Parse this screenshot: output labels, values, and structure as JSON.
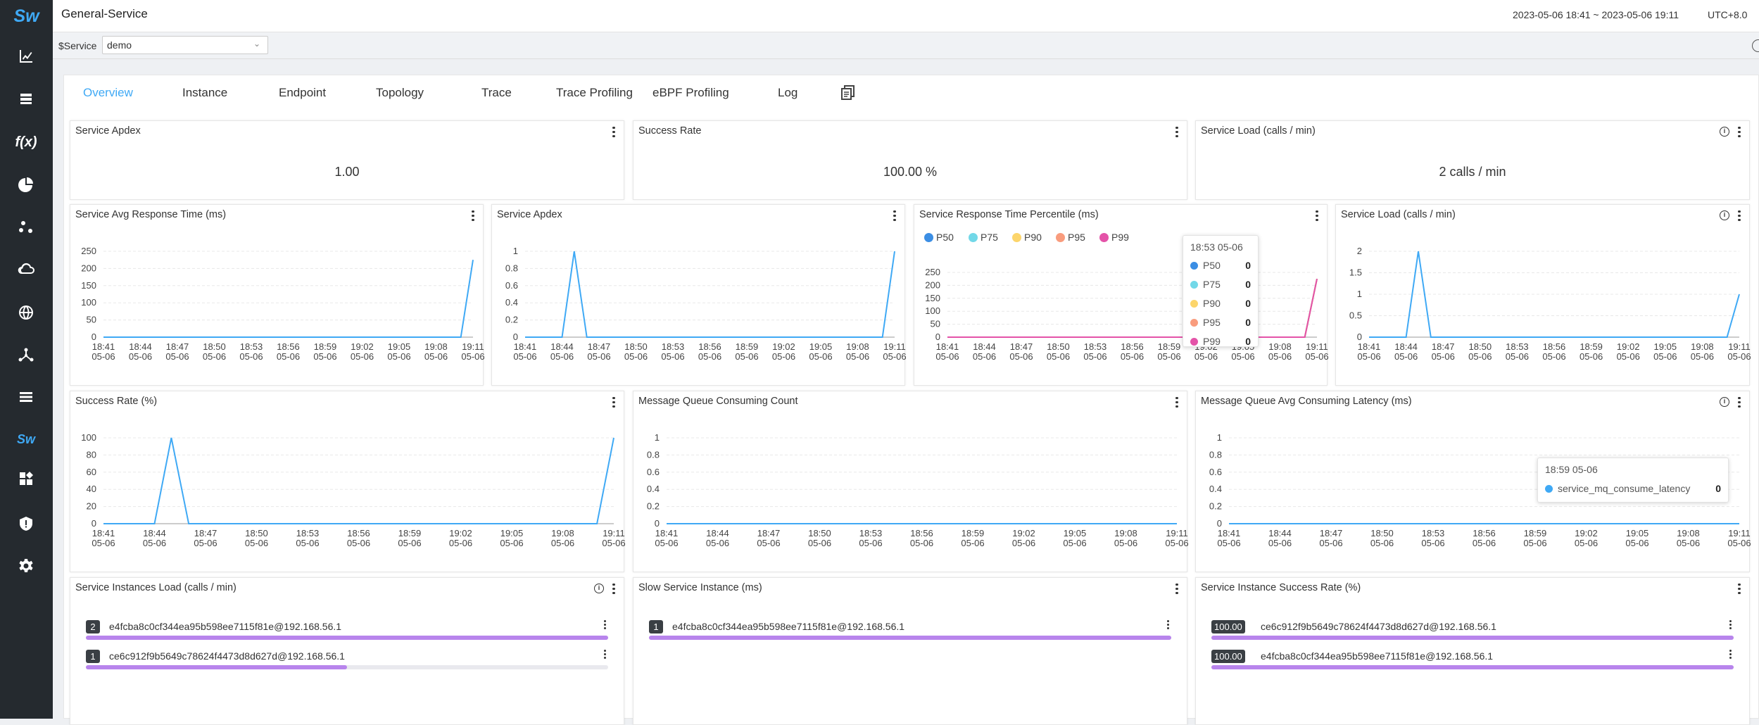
{
  "app": {
    "title": "General-Service",
    "logo": "Sw",
    "time_range": "2023-05-06 18:41 ~ 2023-05-06 19:11",
    "timezone": "UTC+8.0"
  },
  "sidebar": {
    "icons": [
      "dashboard-chart-icon",
      "layers-icon",
      "function-icon",
      "pie-chart-icon",
      "nodes-icon",
      "cloud-icon",
      "globe-icon",
      "mesh-icon",
      "list-icon",
      "skywalking-icon",
      "widgets-icon",
      "shield-icon",
      "gear-icon"
    ]
  },
  "variables": {
    "label": "$Service",
    "value": "demo"
  },
  "tabs": [
    {
      "label": "Overview"
    },
    {
      "label": "Instance"
    },
    {
      "label": "Endpoint"
    },
    {
      "label": "Topology"
    },
    {
      "label": "Trace"
    },
    {
      "label": "Trace Profiling"
    },
    {
      "label": "eBPF Profiling"
    },
    {
      "label": "Log"
    }
  ],
  "colors": {
    "accent": "#3fa9f5",
    "line": "#3fa9f5",
    "p50": "#3b8ee4",
    "p75": "#72d8e8",
    "p90": "#fcd56b",
    "p95": "#f99c7d",
    "p99": "#e453a8",
    "bar": "#b884ec"
  },
  "x_ticks": [
    "18:41",
    "18:44",
    "18:47",
    "18:50",
    "18:53",
    "18:56",
    "18:59",
    "19:02",
    "19:05",
    "19:08",
    "19:11"
  ],
  "x_ticks_sub": "05-06",
  "cards": {
    "apdex_value": {
      "title": "Service Apdex",
      "value": "1.00"
    },
    "success_rate_value": {
      "title": "Success Rate",
      "value": "100.00 %"
    },
    "load_value": {
      "title": "Service Load (calls / min)",
      "value": "2 calls / min"
    }
  },
  "chart_data": [
    {
      "id": "avg_resp",
      "type": "line",
      "title": "Service Avg Response Time (ms)",
      "yticks": [
        "250",
        "200",
        "150",
        "100",
        "50",
        "0"
      ],
      "ylim": [
        0,
        250
      ],
      "x": [
        0,
        1,
        2,
        3,
        4,
        5,
        6,
        7,
        8,
        9,
        9.67,
        10
      ],
      "values": [
        0,
        0,
        0,
        0,
        0,
        0,
        0,
        0,
        0,
        0,
        0,
        225
      ]
    },
    {
      "id": "apdex",
      "type": "line",
      "title": "Service Apdex",
      "yticks": [
        "1",
        "0.8",
        "0.6",
        "0.4",
        "0.2",
        "0"
      ],
      "ylim": [
        0,
        1
      ],
      "x": [
        0,
        1,
        1.33,
        1.67,
        2,
        3,
        4,
        5,
        6,
        7,
        8,
        9,
        9.67,
        10
      ],
      "values": [
        0,
        0,
        1,
        0,
        0,
        0,
        0,
        0,
        0,
        0,
        0,
        0,
        0,
        1
      ]
    },
    {
      "id": "percentile",
      "type": "line",
      "title": "Service Response Time Percentile (ms)",
      "yticks": [
        "250",
        "200",
        "150",
        "100",
        "50",
        "0"
      ],
      "ylim": [
        0,
        250
      ],
      "legend": [
        "P50",
        "P75",
        "P90",
        "P95",
        "P99"
      ],
      "x": [
        0,
        1,
        2,
        3,
        4,
        5,
        6,
        7,
        8,
        9,
        9.67,
        10
      ],
      "values": [
        0,
        0,
        0,
        0,
        0,
        0,
        0,
        0,
        0,
        0,
        0,
        225
      ],
      "tooltip": {
        "title": "18:53 05-06",
        "rows": [
          {
            "name": "P50",
            "value": "0"
          },
          {
            "name": "P75",
            "value": "0"
          },
          {
            "name": "P90",
            "value": "0"
          },
          {
            "name": "P95",
            "value": "0"
          },
          {
            "name": "P99",
            "value": "0"
          }
        ]
      }
    },
    {
      "id": "load",
      "type": "line",
      "title": "Service Load (calls / min)",
      "yticks": [
        "2",
        "1.5",
        "1",
        "0.5",
        "0"
      ],
      "ylim": [
        0,
        2
      ],
      "x": [
        0,
        1,
        1.33,
        1.67,
        2,
        3,
        4,
        5,
        6,
        7,
        8,
        9,
        9.67,
        10
      ],
      "values": [
        0,
        0,
        2,
        0,
        0,
        0,
        0,
        0,
        0,
        0,
        0,
        0,
        0,
        1
      ]
    },
    {
      "id": "success_rate",
      "type": "line",
      "title": "Success Rate (%)",
      "yticks": [
        "100",
        "80",
        "60",
        "40",
        "20",
        "0"
      ],
      "ylim": [
        0,
        100
      ],
      "x": [
        0,
        1,
        1.33,
        1.67,
        2,
        3,
        4,
        5,
        6,
        7,
        8,
        9,
        9.67,
        10
      ],
      "values": [
        0,
        0,
        100,
        0,
        0,
        0,
        0,
        0,
        0,
        0,
        0,
        0,
        0,
        100
      ]
    },
    {
      "id": "mq_count",
      "type": "line",
      "title": "Message Queue Consuming Count",
      "yticks": [
        "1",
        "0.8",
        "0.6",
        "0.4",
        "0.2",
        "0"
      ],
      "ylim": [
        0,
        1
      ],
      "x": [
        0,
        10
      ],
      "values": [
        0,
        0
      ]
    },
    {
      "id": "mq_latency",
      "type": "line",
      "title": "Message Queue Avg Consuming Latency (ms)",
      "yticks": [
        "1",
        "0.8",
        "0.6",
        "0.4",
        "0.2",
        "0"
      ],
      "ylim": [
        0,
        1
      ],
      "x": [
        0,
        10
      ],
      "values": [
        0,
        0
      ],
      "tooltip": {
        "title": "18:59 05-06",
        "rows": [
          {
            "name": "service_mq_consume_latency",
            "value": "0"
          }
        ]
      }
    }
  ],
  "lists": {
    "instances_load": {
      "title": "Service Instances Load (calls / min)",
      "max": 2,
      "items": [
        {
          "badge": "2",
          "value": 2,
          "name": "e4fcba8c0cf344ea95b598ee7115f81e@192.168.56.1"
        },
        {
          "badge": "1",
          "value": 1,
          "name": "ce6c912f9b5649c78624f4473d8d627d@192.168.56.1"
        }
      ]
    },
    "slow_instance": {
      "title": "Slow Service Instance (ms)",
      "max": 1,
      "items": [
        {
          "badge": "1",
          "value": 1,
          "name": "e4fcba8c0cf344ea95b598ee7115f81e@192.168.56.1"
        }
      ]
    },
    "instance_success": {
      "title": "Service Instance Success Rate (%)",
      "max": 100,
      "items": [
        {
          "badge": "100.00",
          "value": 100,
          "name": "ce6c912f9b5649c78624f4473d8d627d@192.168.56.1"
        },
        {
          "badge": "100.00",
          "value": 100,
          "name": "e4fcba8c0cf344ea95b598ee7115f81e@192.168.56.1"
        }
      ]
    }
  }
}
